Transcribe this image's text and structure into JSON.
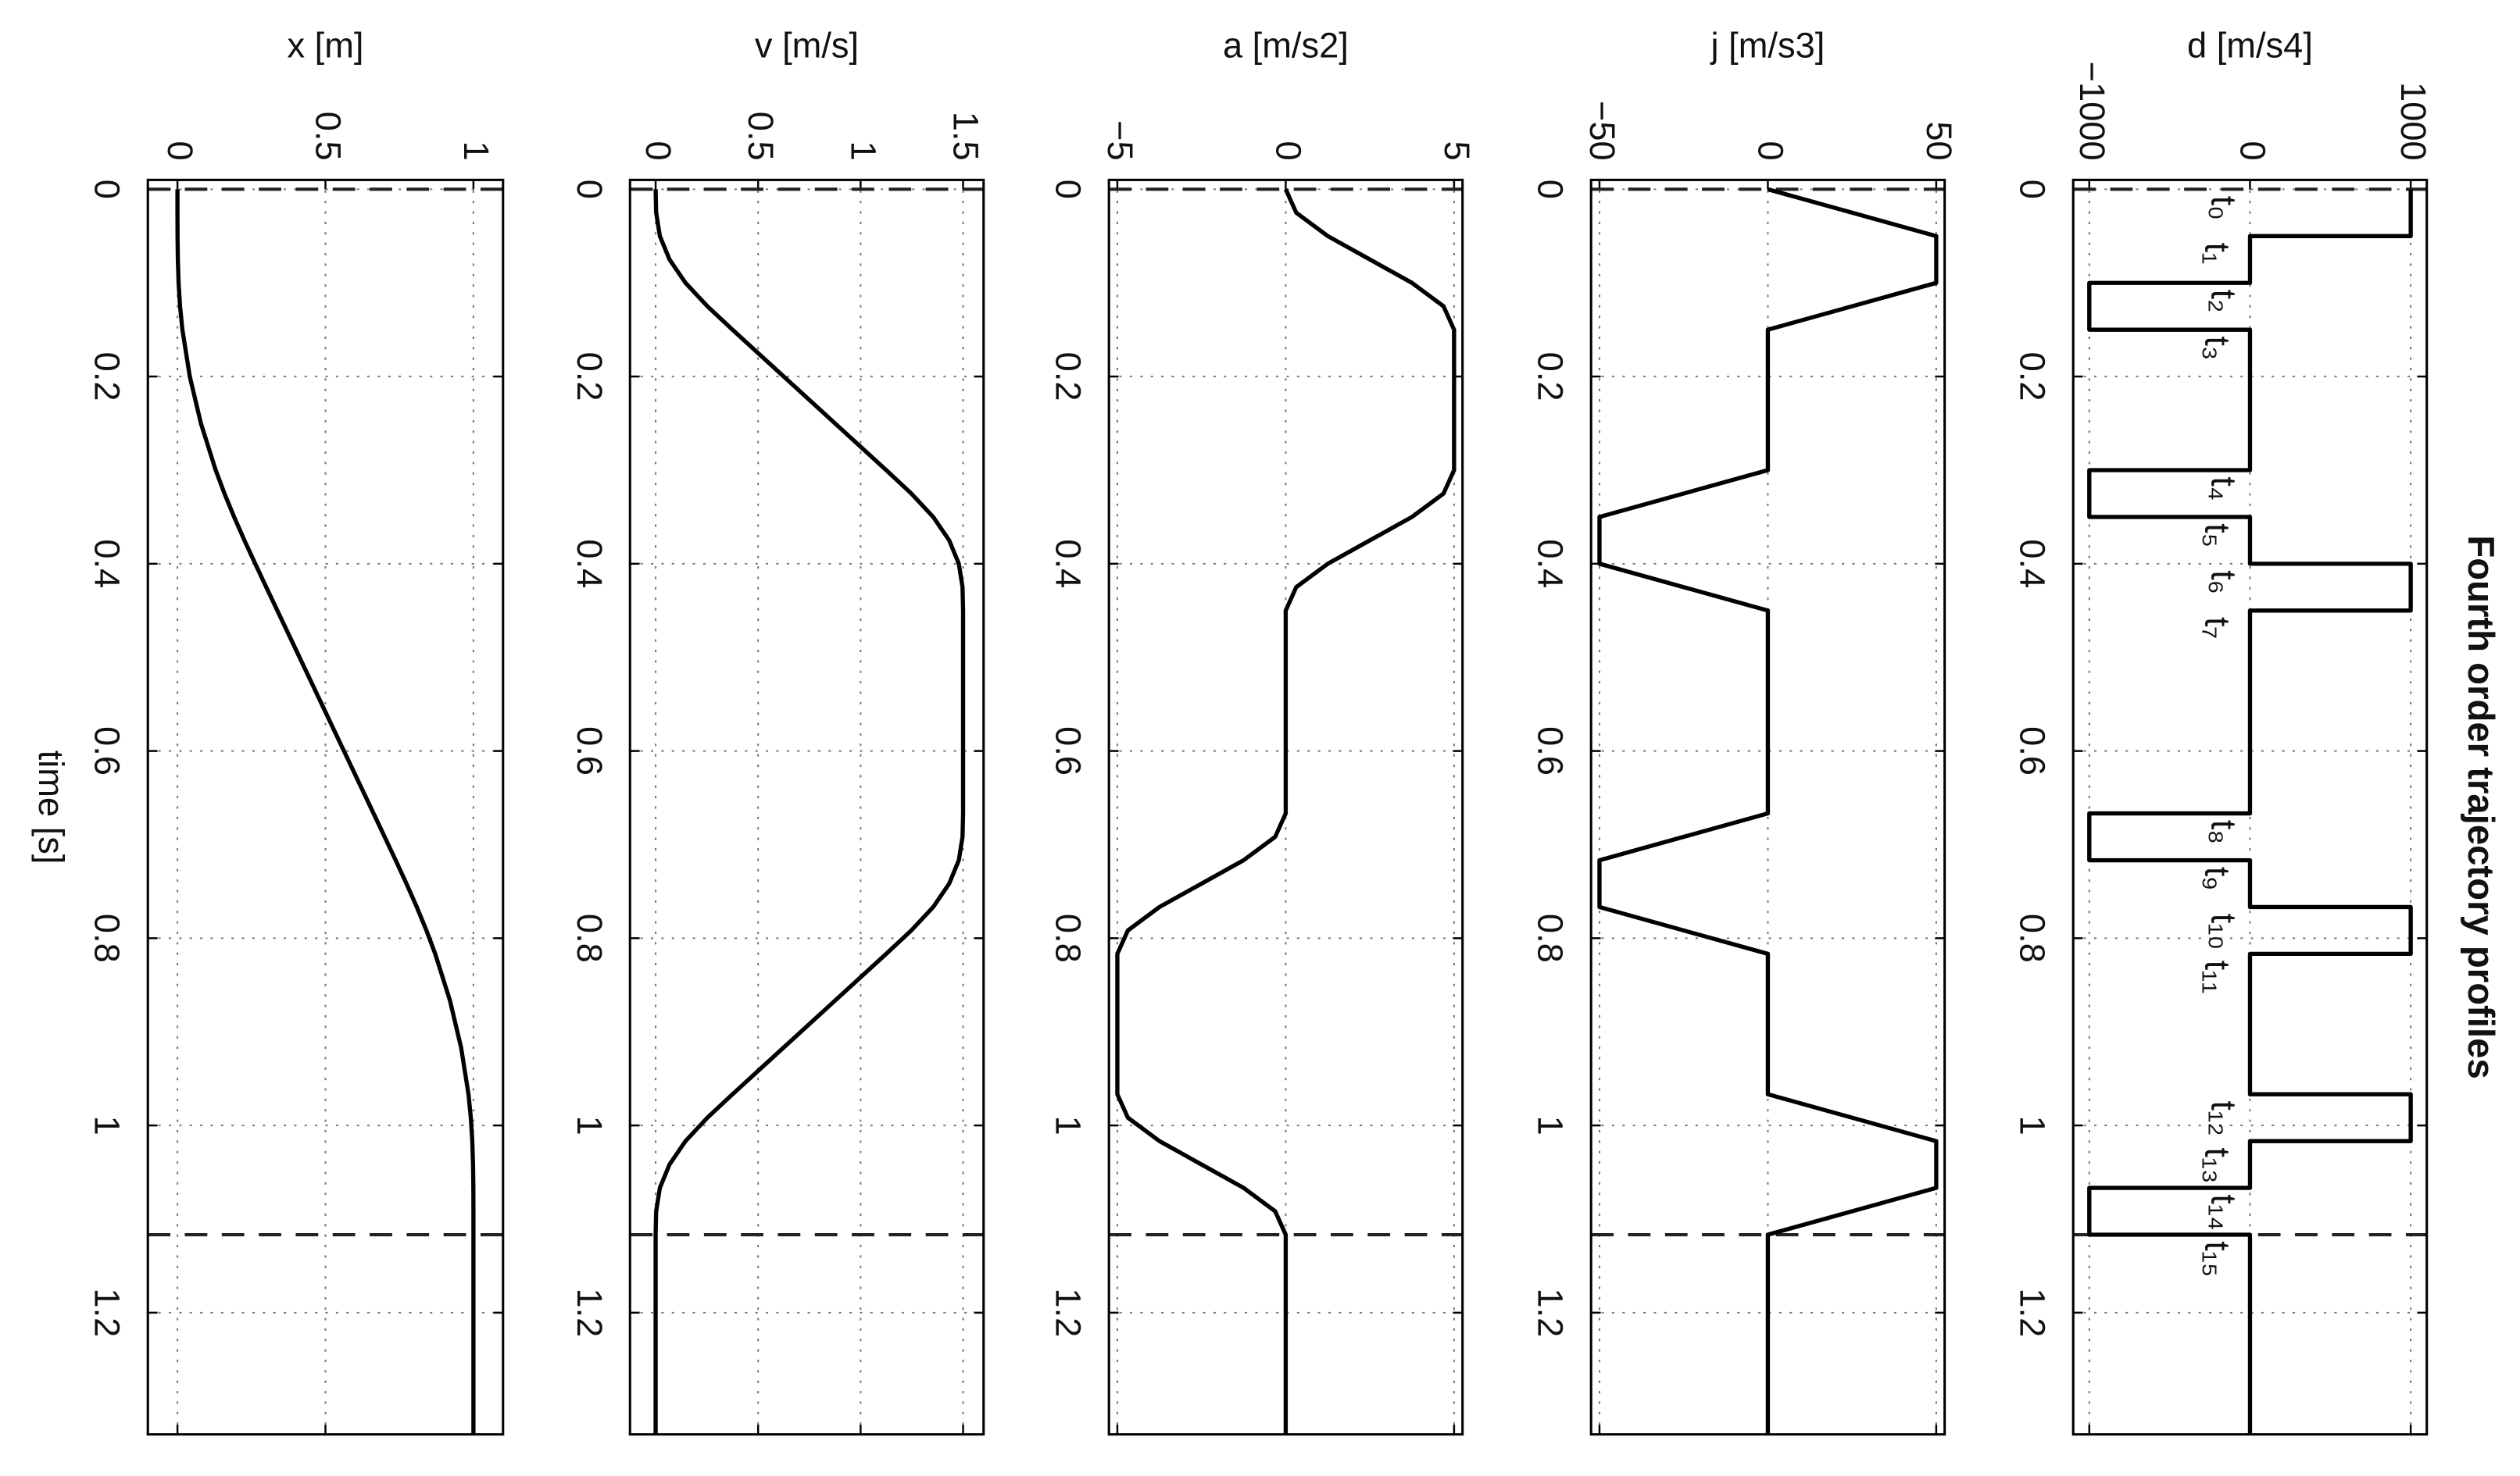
{
  "chart_data": [
    {
      "type": "line",
      "title": "Fourth order trajectory profiles",
      "ylabel": "d [m/s4]",
      "color": "#000000",
      "grid": true,
      "xlim": [
        -0.01,
        1.33
      ],
      "xticks": [
        0,
        0.2,
        0.4,
        0.6,
        0.8,
        1,
        1.2
      ],
      "ylim": [
        -1100,
        1100
      ],
      "yticks": [
        {
          "value": -1000,
          "label": "−1000"
        },
        0,
        1000
      ],
      "vlines": [
        0,
        1.1167
      ],
      "x": [
        0,
        0.05,
        0.05,
        0.1,
        0.1,
        0.15,
        0.15,
        0.3,
        0.3,
        0.35,
        0.35,
        0.4,
        0.4,
        0.45,
        0.45,
        0.6667,
        0.6667,
        0.7167,
        0.7167,
        0.7667,
        0.7667,
        0.8167,
        0.8167,
        0.9667,
        0.9667,
        1.0167,
        1.0167,
        1.0667,
        1.0667,
        1.1167,
        1.1167,
        1.33
      ],
      "values": [
        1000,
        1000,
        0,
        0,
        -1000,
        -1000,
        0,
        0,
        -1000,
        -1000,
        0,
        0,
        1000,
        1000,
        0,
        0,
        -1000,
        -1000,
        0,
        0,
        1000,
        1000,
        0,
        0,
        1000,
        1000,
        0,
        0,
        -1000,
        -1000,
        0,
        0
      ],
      "annotations": [
        {
          "text": "t₀",
          "x": 0
        },
        {
          "text": "t₁",
          "x": 0.05
        },
        {
          "text": "t₂",
          "x": 0.1
        },
        {
          "text": "t₃",
          "x": 0.15
        },
        {
          "text": "t₄",
          "x": 0.3
        },
        {
          "text": "t₅",
          "x": 0.35
        },
        {
          "text": "t₆",
          "x": 0.4
        },
        {
          "text": "t₇",
          "x": 0.45
        },
        {
          "text": "t₈",
          "x": 0.6667
        },
        {
          "text": "t₉",
          "x": 0.7167
        },
        {
          "text": "t₁₀",
          "x": 0.7667
        },
        {
          "text": "t₁₁",
          "x": 0.8167
        },
        {
          "text": "t₁₂",
          "x": 0.9667
        },
        {
          "text": "t₁₃",
          "x": 1.0167
        },
        {
          "text": "t₁₄",
          "x": 1.0667
        },
        {
          "text": "t₁₅",
          "x": 1.1167
        }
      ]
    },
    {
      "type": "line",
      "ylabel": "j [m/s3]",
      "color": "#000000",
      "grid": true,
      "xlim": [
        -0.01,
        1.33
      ],
      "xticks": [
        0,
        0.2,
        0.4,
        0.6,
        0.8,
        1,
        1.2
      ],
      "ylim": [
        -52.5,
        52.5
      ],
      "yticks": [
        {
          "value": -50,
          "label": "−50"
        },
        0,
        50
      ],
      "vlines": [
        0,
        1.1167
      ],
      "x": [
        0,
        0.05,
        0.1,
        0.15,
        0.3,
        0.35,
        0.4,
        0.45,
        0.6667,
        0.7167,
        0.7667,
        0.8167,
        0.9667,
        1.0167,
        1.0667,
        1.1167,
        1.33
      ],
      "values": [
        0,
        50,
        50,
        0,
        0,
        -50,
        -50,
        0,
        0,
        -50,
        -50,
        0,
        0,
        50,
        50,
        0,
        0
      ]
    },
    {
      "type": "line",
      "ylabel": "a [m/s2]",
      "color": "#000000",
      "grid": true,
      "xlim": [
        -0.01,
        1.33
      ],
      "xticks": [
        0,
        0.2,
        0.4,
        0.6,
        0.8,
        1,
        1.2
      ],
      "ylim": [
        -5.25,
        5.25
      ],
      "yticks": [
        {
          "value": -5,
          "label": "−5"
        },
        0,
        5
      ],
      "vlines": [
        0,
        1.1167
      ],
      "x": [
        0,
        0.025,
        0.05,
        0.075,
        0.1,
        0.125,
        0.15,
        0.2,
        0.25,
        0.3,
        0.325,
        0.35,
        0.375,
        0.4,
        0.425,
        0.45,
        0.5,
        0.55,
        0.6,
        0.6667,
        0.6917,
        0.7167,
        0.7417,
        0.7667,
        0.7917,
        0.8167,
        0.8667,
        0.9167,
        0.9667,
        0.9917,
        1.0167,
        1.0417,
        1.0667,
        1.0917,
        1.1167,
        1.2,
        1.33
      ],
      "values": [
        0,
        0.3125,
        1.25,
        2.5,
        3.75,
        4.6875,
        5,
        5,
        5,
        5,
        4.6875,
        3.75,
        2.5,
        1.25,
        0.3125,
        0,
        0,
        0,
        0,
        0,
        -0.3125,
        -1.25,
        -2.5,
        -3.75,
        -4.6875,
        -5,
        -5,
        -5,
        -5,
        -4.6875,
        -3.75,
        -2.5,
        -1.25,
        -0.3125,
        0,
        0,
        0
      ]
    },
    {
      "type": "line",
      "ylabel": "v [m/s]",
      "color": "#000000",
      "grid": true,
      "xlim": [
        -0.01,
        1.33
      ],
      "xticks": [
        0,
        0.2,
        0.4,
        0.6,
        0.8,
        1,
        1.2
      ],
      "ylim": [
        -0.125,
        1.6
      ],
      "yticks": [
        0,
        0.5,
        1,
        1.5
      ],
      "vlines": [
        0,
        1.1167
      ],
      "x": [
        0,
        0.025,
        0.05,
        0.075,
        0.1,
        0.125,
        0.15,
        0.2,
        0.25,
        0.3,
        0.325,
        0.35,
        0.375,
        0.4,
        0.425,
        0.45,
        0.5,
        0.55,
        0.6,
        0.6667,
        0.6917,
        0.7167,
        0.7417,
        0.7667,
        0.7917,
        0.8167,
        0.8667,
        0.9167,
        0.9667,
        0.9917,
        1.0167,
        1.0417,
        1.0667,
        1.0917,
        1.1167,
        1.2,
        1.33
      ],
      "values": [
        0,
        0.0026,
        0.0208,
        0.0677,
        0.1458,
        0.2526,
        0.375,
        0.625,
        0.875,
        1.125,
        1.2474,
        1.3542,
        1.4323,
        1.4792,
        1.4974,
        1.5,
        1.5,
        1.5,
        1.5,
        1.5,
        1.4974,
        1.4792,
        1.4323,
        1.3542,
        1.2474,
        1.125,
        0.875,
        0.625,
        0.375,
        0.2526,
        0.1458,
        0.0677,
        0.0208,
        0.0026,
        0,
        0,
        0
      ]
    },
    {
      "type": "line",
      "ylabel": "x [m]",
      "xlabel": "time [s]",
      "color": "#000000",
      "grid": true,
      "xlim": [
        -0.01,
        1.33
      ],
      "xticks": [
        0,
        0.2,
        0.4,
        0.6,
        0.8,
        1,
        1.2
      ],
      "ylim": [
        -0.1,
        1.1
      ],
      "yticks": [
        0,
        0.5,
        1
      ],
      "vlines": [
        0,
        1.1167
      ],
      "x": [
        0,
        0.025,
        0.05,
        0.075,
        0.1,
        0.125,
        0.15,
        0.2,
        0.25,
        0.3,
        0.325,
        0.35,
        0.375,
        0.4,
        0.425,
        0.45,
        0.5,
        0.55,
        0.6,
        0.6667,
        0.6917,
        0.7167,
        0.7417,
        0.7667,
        0.7917,
        0.8167,
        0.8667,
        0.9167,
        0.9667,
        0.9917,
        1.0167,
        1.0417,
        1.0667,
        1.0917,
        1.1167,
        1.2,
        1.33
      ],
      "values": [
        0,
        0,
        0.0003,
        0.0013,
        0.0039,
        0.0088,
        0.0167,
        0.0417,
        0.0792,
        0.1292,
        0.1588,
        0.1914,
        0.2263,
        0.2628,
        0.3,
        0.3375,
        0.4125,
        0.4875,
        0.5625,
        0.6625,
        0.7,
        0.7372,
        0.7737,
        0.8086,
        0.8412,
        0.8708,
        0.9208,
        0.9583,
        0.9833,
        0.9912,
        0.9961,
        0.9987,
        0.9997,
        1,
        1,
        1,
        1
      ]
    }
  ]
}
